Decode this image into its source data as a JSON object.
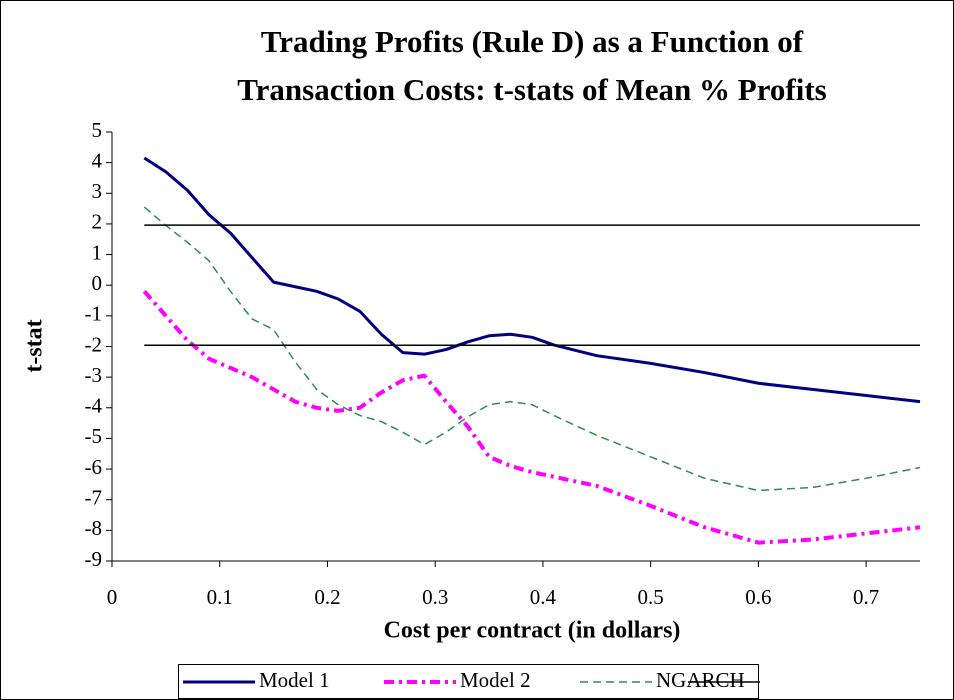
{
  "chart_data": {
    "type": "line",
    "title": [
      "Trading Profits (Rule D) as a Function of",
      "Transaction Costs: t-stats of Mean % Profits"
    ],
    "x_label": "Cost per contract (in dollars)",
    "y_label": "t-stat",
    "xlim": [
      0,
      0.75
    ],
    "xticks": [
      0,
      0.1,
      0.2,
      0.3,
      0.4,
      0.5,
      0.6,
      0.7
    ],
    "ylim": [
      -9,
      5
    ],
    "yticks": [
      -9,
      -8,
      -7,
      -6,
      -5,
      -4,
      -3,
      -2,
      -1,
      0,
      1,
      2,
      3,
      4,
      5
    ],
    "grid": false,
    "legend": "bottom",
    "series": [
      {
        "name": "Model 1",
        "color": "#000080",
        "line_style": "solid",
        "x": [
          0.03,
          0.05,
          0.07,
          0.09,
          0.11,
          0.13,
          0.15,
          0.17,
          0.19,
          0.21,
          0.23,
          0.25,
          0.27,
          0.29,
          0.31,
          0.33,
          0.35,
          0.37,
          0.39,
          0.41,
          0.45,
          0.5,
          0.55,
          0.6,
          0.65,
          0.7,
          0.75
        ],
        "values": [
          4.15,
          3.7,
          3.1,
          2.3,
          1.7,
          0.9,
          0.1,
          -0.05,
          -0.2,
          -0.45,
          -0.85,
          -1.6,
          -2.2,
          -2.25,
          -2.1,
          -1.85,
          -1.65,
          -1.6,
          -1.7,
          -1.95,
          -2.3,
          -2.55,
          -2.85,
          -3.2,
          -3.4,
          -3.6,
          -3.8
        ]
      },
      {
        "name": "Model 2",
        "color": "#ff00ff",
        "line_style": "dash-dot",
        "x": [
          0.03,
          0.05,
          0.07,
          0.09,
          0.11,
          0.13,
          0.15,
          0.17,
          0.19,
          0.21,
          0.23,
          0.25,
          0.27,
          0.29,
          0.31,
          0.33,
          0.35,
          0.37,
          0.39,
          0.41,
          0.45,
          0.5,
          0.55,
          0.6,
          0.65,
          0.7,
          0.75
        ],
        "values": [
          -0.2,
          -1.0,
          -1.8,
          -2.4,
          -2.7,
          -3.0,
          -3.4,
          -3.8,
          -4.0,
          -4.1,
          -4.0,
          -3.5,
          -3.1,
          -2.95,
          -3.8,
          -4.6,
          -5.6,
          -5.9,
          -6.1,
          -6.25,
          -6.55,
          -7.2,
          -7.9,
          -8.4,
          -8.3,
          -8.1,
          -7.9
        ]
      },
      {
        "name": "NGARCH",
        "color": "#2e8b57",
        "line_style": "dashed",
        "x": [
          0.03,
          0.05,
          0.07,
          0.09,
          0.11,
          0.13,
          0.15,
          0.17,
          0.19,
          0.21,
          0.23,
          0.25,
          0.27,
          0.29,
          0.31,
          0.33,
          0.35,
          0.37,
          0.39,
          0.41,
          0.45,
          0.5,
          0.55,
          0.6,
          0.65,
          0.7,
          0.75
        ],
        "values": [
          2.55,
          1.95,
          1.4,
          0.8,
          -0.2,
          -1.1,
          -1.45,
          -2.5,
          -3.4,
          -3.9,
          -4.25,
          -4.45,
          -4.8,
          -5.2,
          -4.8,
          -4.3,
          -3.9,
          -3.8,
          -3.9,
          -4.25,
          -4.9,
          -5.6,
          -6.3,
          -6.7,
          -6.6,
          -6.3,
          -5.95
        ]
      },
      {
        "color": "#000000",
        "line_style": "thin",
        "x": [
          0.03,
          0.75,
          0.75,
          0.03,
          0.75
        ],
        "values": [
          1.96,
          1.96,
          null,
          -1.96,
          -1.96
        ]
      }
    ]
  }
}
